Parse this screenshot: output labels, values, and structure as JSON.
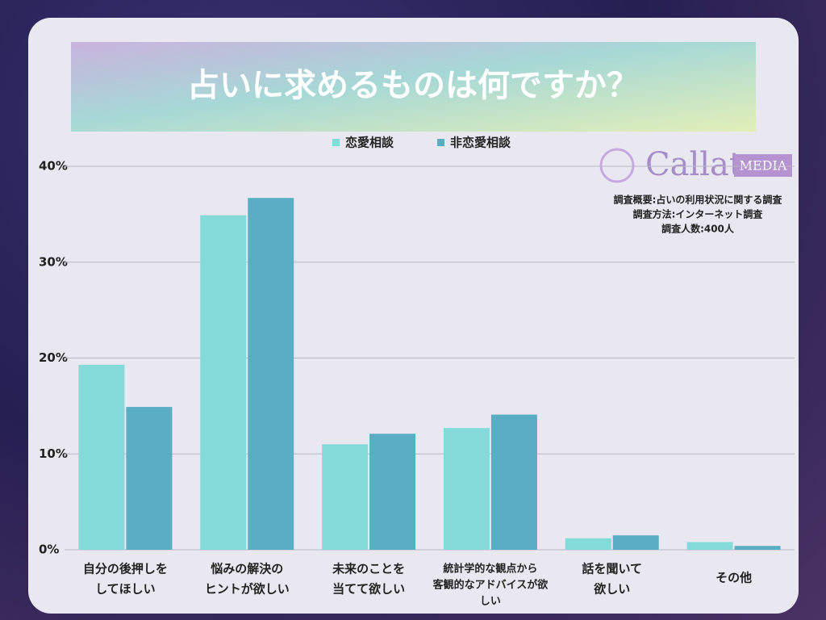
{
  "chart_data": {
    "type": "bar",
    "title": "占いに求めるものは何ですか？",
    "categories": [
      [
        "自分の後押しを",
        "してほしい"
      ],
      [
        "悩みの解決の",
        "ヒントが欲しい"
      ],
      [
        "未来のことを",
        "当てて欲しい"
      ],
      [
        "統計学的な観点から",
        "客観的なアドバイスが欲",
        "しい"
      ],
      [
        "話を聞いて",
        "欲しい"
      ],
      [
        "その他"
      ]
    ],
    "series": [
      {
        "name": "恋愛相談",
        "color": "#84d9d9",
        "values": [
          19.3,
          34.9,
          11.0,
          12.7,
          1.2,
          0.8
        ]
      },
      {
        "name": "非恋愛相談",
        "color": "#5aaec3",
        "values": [
          14.9,
          36.7,
          12.1,
          14.1,
          1.5,
          0.4
        ]
      }
    ],
    "ylim": [
      0,
      40
    ],
    "yticks": [
      {
        "value": 0,
        "label": "0%"
      },
      {
        "value": 10,
        "label": "10%"
      },
      {
        "value": 20,
        "label": "20%"
      },
      {
        "value": 30,
        "label": "30%"
      },
      {
        "value": 40,
        "label": "40%"
      }
    ],
    "grid": true,
    "logo": {
      "name": "Callat",
      "tag": "MEDIA"
    },
    "notes": [
      "調査概要:占いの利用状況に関する調査",
      "調査方法:インターネット調査",
      "調査人数:400人"
    ]
  }
}
